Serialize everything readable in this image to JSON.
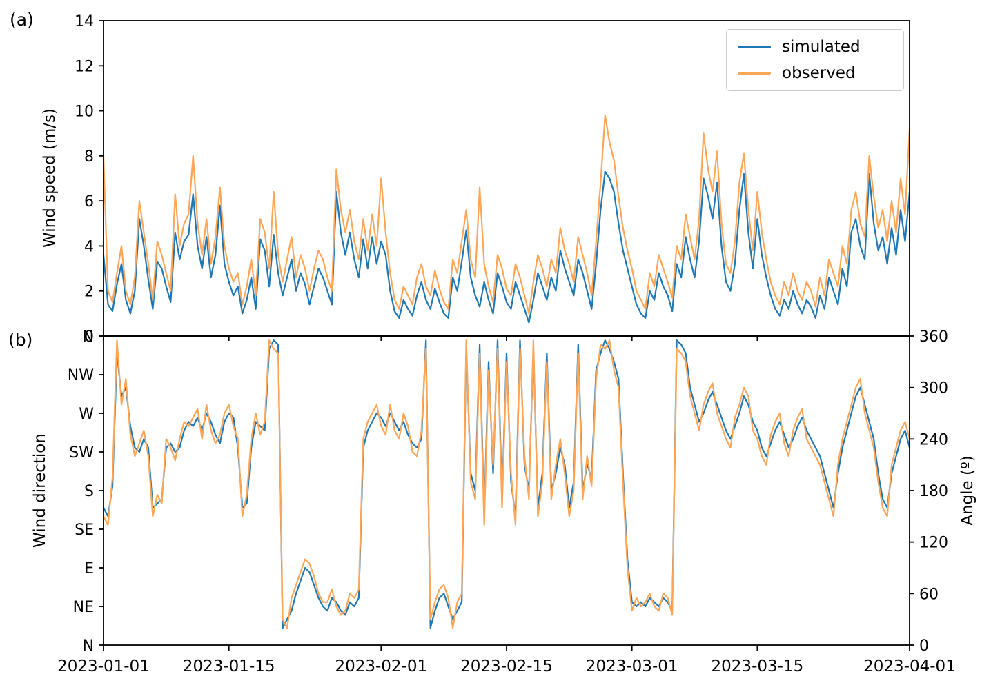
{
  "figure": {
    "panel_a_label": "(a)",
    "panel_b_label": "(b)",
    "background": "#ffffff"
  },
  "legend": {
    "position": "upper-right of panel a",
    "entries": [
      {
        "label": "simulated",
        "color": "#1f77b4"
      },
      {
        "label": "observed",
        "color": "#ffa556"
      }
    ]
  },
  "chart_data": {
    "type": "line",
    "x_axis": {
      "tick_labels": [
        "2023-01-01",
        "2023-01-15",
        "2023-02-01",
        "2023-02-15",
        "2023-03-01",
        "2023-03-15",
        "2023-04-01"
      ],
      "tick_days": [
        0,
        14,
        31,
        45,
        59,
        73,
        90
      ],
      "lim_days": [
        0,
        90
      ],
      "x_start_day": 0,
      "x_step_days": 0.5
    },
    "panels": [
      {
        "id": "a",
        "ylabel": "Wind speed (m/s)",
        "ylim": [
          0,
          14
        ],
        "yticks": [
          0,
          2,
          4,
          6,
          8,
          10,
          12,
          14
        ],
        "series": [
          {
            "name": "simulated",
            "color": "#1f77b4",
            "values": [
              3.6,
              1.4,
              1.1,
              2.3,
              3.2,
              1.6,
              1.0,
              2.0,
              5.2,
              4.0,
              2.5,
              1.2,
              3.3,
              3.0,
              2.2,
              1.5,
              4.6,
              3.4,
              4.2,
              4.5,
              6.3,
              4.0,
              3.0,
              4.4,
              2.6,
              3.6,
              5.8,
              3.2,
              2.4,
              1.8,
              2.2,
              1.0,
              1.6,
              2.6,
              1.2,
              4.3,
              3.8,
              2.2,
              4.5,
              2.8,
              1.8,
              2.6,
              3.4,
              2.0,
              2.8,
              2.3,
              1.4,
              2.2,
              3.0,
              2.6,
              2.0,
              1.4,
              6.4,
              4.6,
              3.6,
              4.6,
              3.4,
              2.6,
              4.3,
              3.0,
              4.4,
              3.2,
              4.2,
              3.6,
              2.0,
              1.1,
              0.8,
              1.6,
              1.2,
              0.9,
              1.8,
              2.4,
              1.6,
              1.2,
              2.1,
              1.5,
              1.0,
              0.8,
              2.6,
              2.0,
              3.3,
              4.7,
              2.6,
              1.8,
              1.3,
              2.4,
              1.6,
              1.0,
              2.8,
              2.2,
              1.5,
              1.2,
              2.4,
              1.8,
              1.2,
              0.6,
              1.6,
              2.8,
              2.2,
              1.6,
              2.6,
              2.0,
              3.8,
              3.0,
              2.4,
              1.8,
              3.4,
              2.8,
              2.0,
              1.2,
              3.2,
              5.6,
              7.3,
              7.0,
              6.4,
              5.0,
              3.8,
              3.0,
              2.2,
              1.4,
              1.0,
              0.8,
              2.0,
              1.6,
              2.8,
              2.2,
              1.8,
              1.1,
              3.2,
              2.6,
              4.4,
              3.4,
              2.6,
              4.2,
              7.0,
              6.2,
              5.2,
              6.8,
              4.0,
              2.4,
              2.0,
              3.2,
              5.6,
              7.2,
              4.6,
              3.0,
              5.2,
              3.6,
              2.6,
              1.8,
              1.2,
              0.9,
              1.6,
              1.2,
              2.0,
              1.4,
              1.0,
              1.6,
              1.3,
              0.8,
              1.8,
              1.2,
              2.6,
              2.0,
              1.4,
              3.0,
              2.2,
              4.6,
              5.2,
              4.0,
              3.4,
              7.2,
              5.0,
              3.8,
              4.4,
              3.2,
              4.8,
              3.6,
              5.6,
              4.2,
              6.4
            ]
          },
          {
            "name": "observed",
            "color": "#ffa556",
            "values": [
              8.0,
              2.0,
              1.5,
              2.8,
              4.0,
              2.0,
              1.4,
              2.6,
              6.0,
              4.6,
              3.2,
              1.6,
              4.2,
              3.6,
              2.8,
              2.0,
              6.3,
              4.0,
              5.0,
              5.4,
              8.0,
              5.0,
              3.6,
              5.2,
              3.2,
              4.4,
              6.6,
              4.0,
              3.0,
              2.4,
              2.8,
              1.4,
              2.2,
              3.4,
              1.8,
              5.2,
              4.6,
              3.0,
              6.4,
              3.6,
              2.4,
              3.4,
              4.4,
              2.6,
              3.6,
              3.0,
              2.0,
              3.0,
              3.8,
              3.4,
              2.6,
              2.0,
              7.4,
              5.6,
              4.6,
              5.6,
              4.2,
              3.4,
              5.2,
              3.8,
              5.4,
              4.0,
              7.0,
              4.6,
              2.8,
              1.6,
              1.2,
              2.2,
              1.8,
              1.4,
              2.6,
              3.2,
              2.2,
              1.8,
              2.9,
              2.1,
              1.5,
              1.2,
              3.4,
              2.8,
              4.2,
              5.6,
              3.4,
              2.6,
              6.6,
              3.2,
              2.2,
              1.5,
              3.6,
              3.0,
              2.1,
              1.8,
              3.2,
              2.6,
              1.8,
              1.0,
              2.4,
              3.6,
              3.0,
              2.2,
              3.4,
              2.8,
              4.8,
              3.8,
              3.2,
              2.4,
              4.4,
              3.6,
              2.8,
              1.8,
              4.2,
              6.8,
              9.8,
              8.6,
              7.8,
              6.2,
              4.8,
              3.8,
              3.0,
              2.0,
              1.6,
              1.2,
              2.8,
              2.2,
              3.6,
              3.0,
              2.4,
              1.7,
              4.0,
              3.4,
              5.4,
              4.4,
              3.4,
              5.2,
              9.0,
              7.4,
              6.4,
              8.2,
              5.0,
              3.2,
              2.8,
              4.2,
              6.8,
              8.1,
              5.6,
              3.8,
              6.4,
              4.6,
              3.4,
              2.4,
              1.8,
              1.4,
              2.4,
              1.8,
              2.8,
              2.0,
              1.6,
              2.4,
              2.0,
              1.3,
              2.6,
              1.8,
              3.4,
              2.8,
              2.2,
              4.0,
              3.2,
              5.6,
              6.4,
              5.0,
              4.4,
              8.0,
              6.2,
              4.8,
              5.6,
              4.2,
              6.0,
              4.6,
              7.0,
              5.4,
              9.2
            ]
          }
        ]
      },
      {
        "id": "b",
        "ylabel_left": "Wind direction",
        "ylabel_right": "Angle (º)",
        "ylim": [
          0,
          360
        ],
        "yticks_left": [
          {
            "label": "N",
            "deg": 360
          },
          {
            "label": "NW",
            "deg": 315
          },
          {
            "label": "W",
            "deg": 270
          },
          {
            "label": "SW",
            "deg": 225
          },
          {
            "label": "S",
            "deg": 180
          },
          {
            "label": "SE",
            "deg": 135
          },
          {
            "label": "E",
            "deg": 90
          },
          {
            "label": "NE",
            "deg": 45
          },
          {
            "label": "N",
            "deg": 0
          }
        ],
        "yticks_right": [
          0,
          60,
          120,
          180,
          240,
          300,
          360
        ],
        "series": [
          {
            "name": "simulated",
            "color": "#1f77b4",
            "values": [
              160,
              150,
              185,
              340,
              290,
              300,
              255,
              230,
              225,
              240,
              230,
              160,
              165,
              170,
              230,
              235,
              225,
              230,
              250,
              260,
              255,
              265,
              250,
              270,
              260,
              245,
              235,
              260,
              270,
              265,
              230,
              160,
              165,
              230,
              260,
              255,
              250,
              345,
              355,
              350,
              20,
              30,
              40,
              60,
              75,
              90,
              85,
              70,
              55,
              45,
              40,
              55,
              50,
              40,
              35,
              50,
              45,
              55,
              230,
              250,
              260,
              270,
              265,
              255,
              270,
              260,
              250,
              260,
              245,
              235,
              230,
              240,
              355,
              20,
              40,
              55,
              60,
              45,
              30,
              40,
              50,
              345,
              200,
              180,
              350,
              150,
              330,
              200,
              355,
              170,
              340,
              190,
              150,
              355,
              210,
              180,
              345,
              160,
              200,
              340,
              180,
              200,
              230,
              210,
              160,
              190,
              350,
              180,
              210,
              195,
              320,
              340,
              355,
              345,
              330,
              310,
              200,
              100,
              50,
              45,
              50,
              45,
              55,
              50,
              45,
              55,
              50,
              40,
              355,
              350,
              340,
              300,
              280,
              260,
              270,
              285,
              295,
              280,
              265,
              250,
              240,
              255,
              270,
              290,
              280,
              260,
              250,
              230,
              220,
              235,
              250,
              260,
              245,
              230,
              240,
              255,
              265,
              250,
              240,
              230,
              220,
              200,
              180,
              160,
              200,
              230,
              250,
              270,
              290,
              300,
              280,
              260,
              240,
              200,
              170,
              160,
              200,
              220,
              240,
              250,
              230
            ]
          },
          {
            "name": "observed",
            "color": "#ffa556",
            "values": [
              150,
              140,
              195,
              355,
              280,
              310,
              245,
              220,
              235,
              250,
              220,
              150,
              175,
              165,
              240,
              230,
              215,
              240,
              260,
              255,
              265,
              275,
              240,
              280,
              250,
              235,
              245,
              270,
              280,
              255,
              240,
              150,
              175,
              240,
              270,
              245,
              260,
              355,
              345,
              340,
              30,
              20,
              55,
              70,
              85,
              100,
              95,
              80,
              60,
              50,
              50,
              65,
              45,
              35,
              40,
              60,
              55,
              65,
              240,
              260,
              270,
              280,
              255,
              245,
              280,
              250,
              240,
              270,
              255,
              225,
              220,
              250,
              345,
              30,
              50,
              65,
              70,
              55,
              20,
              50,
              60,
              355,
              190,
              170,
              340,
              140,
              320,
              210,
              345,
              160,
              330,
              200,
              140,
              345,
              220,
              170,
              355,
              150,
              190,
              330,
              170,
              210,
              240,
              200,
              150,
              180,
              340,
              170,
              220,
              185,
              310,
              350,
              345,
              355,
              320,
              300,
              190,
              90,
              40,
              55,
              45,
              50,
              60,
              45,
              40,
              60,
              55,
              35,
              345,
              340,
              330,
              290,
              270,
              250,
              280,
              295,
              305,
              270,
              255,
              240,
              230,
              265,
              280,
              300,
              290,
              250,
              240,
              220,
              210,
              245,
              260,
              270,
              235,
              220,
              250,
              265,
              275,
              240,
              230,
              220,
              210,
              190,
              170,
              150,
              210,
              240,
              260,
              280,
              300,
              310,
              270,
              250,
              230,
              190,
              160,
              150,
              210,
              230,
              250,
              260,
              240
            ]
          }
        ]
      }
    ]
  }
}
